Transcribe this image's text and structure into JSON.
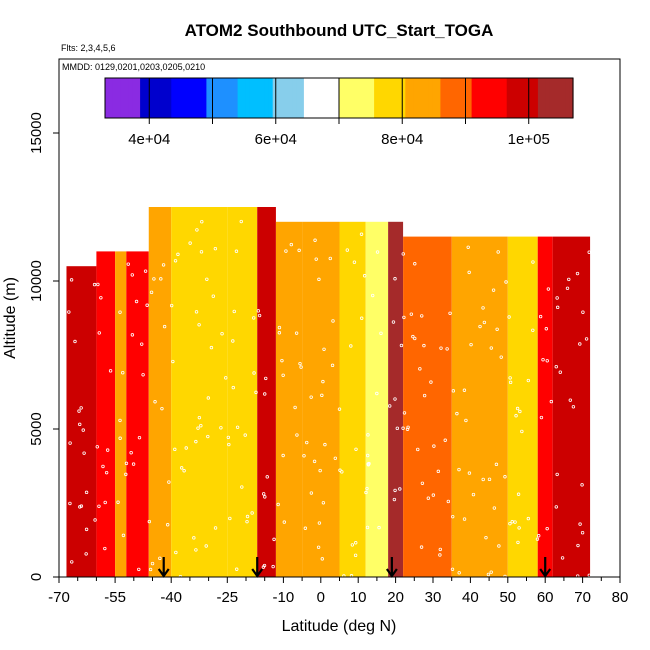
{
  "chart_data": {
    "type": "heatmap",
    "title": "ATOM2 Southbound UTC_Start_TOGA",
    "flights_note": "Flts: 2,3,4,5,6",
    "dates_note": "MMDD: 0129,0201,0203,0205,0210",
    "xlabel": "Latitude (deg N)",
    "ylabel": "Altitude (m)",
    "xlim": [
      -70,
      80
    ],
    "ylim": [
      0,
      17500
    ],
    "x_ticks": [
      -70,
      -55,
      -40,
      -25,
      -10,
      0,
      10,
      20,
      30,
      40,
      50,
      60,
      70,
      80
    ],
    "y_ticks": [
      0,
      5000,
      10000,
      15000
    ],
    "colorbar": {
      "range": [
        33000,
        107000
      ],
      "ticks": [
        40000,
        60000,
        80000,
        100000
      ],
      "tick_labels": [
        "4e+04",
        "6e+04",
        "8e+04",
        "1e+05"
      ],
      "divisions": [
        40000,
        50000,
        60000,
        70000,
        80000,
        90000,
        100000
      ],
      "colors": [
        "#8a2be2",
        "#0000cd",
        "#0000ff",
        "#1e90ff",
        "#00bfff",
        "#87ceeb",
        "#ffffff",
        "#ffff66",
        "#ffd700",
        "#ffa500",
        "#ff6600",
        "#ff0000",
        "#cc0000",
        "#a52a2a"
      ]
    },
    "columns": [
      {
        "x0": -68,
        "x1": -60,
        "top": 10500,
        "value": 99000
      },
      {
        "x0": -60,
        "x1": -55,
        "top": 11000,
        "value": 94000
      },
      {
        "x0": -55,
        "x1": -52,
        "top": 11000,
        "value": 84000
      },
      {
        "x0": -52,
        "x1": -46,
        "top": 11000,
        "value": 96000
      },
      {
        "x0": -46,
        "x1": -40,
        "top": 12500,
        "value": 82000
      },
      {
        "x0": -40,
        "x1": -25,
        "top": 12500,
        "value": 80000
      },
      {
        "x0": -25,
        "x1": -17,
        "top": 12500,
        "value": 77000
      },
      {
        "x0": -17,
        "x1": -12,
        "top": 12500,
        "value": 101000
      },
      {
        "x0": -12,
        "x1": -5,
        "top": 12000,
        "value": 84000
      },
      {
        "x0": -5,
        "x1": 5,
        "top": 12000,
        "value": 81000
      },
      {
        "x0": 5,
        "x1": 12,
        "top": 12000,
        "value": 76000
      },
      {
        "x0": 12,
        "x1": 18,
        "top": 12000,
        "value": 70000
      },
      {
        "x0": 18,
        "x1": 22,
        "top": 12000,
        "value": 102000
      },
      {
        "x0": 22,
        "x1": 35,
        "top": 11500,
        "value": 90000
      },
      {
        "x0": 35,
        "x1": 50,
        "top": 11500,
        "value": 84000
      },
      {
        "x0": 50,
        "x1": 58,
        "top": 11500,
        "value": 80000
      },
      {
        "x0": 58,
        "x1": 62,
        "top": 11500,
        "value": 94000
      },
      {
        "x0": 62,
        "x1": 72,
        "top": 11500,
        "value": 98000
      }
    ],
    "arrows_at_latitude": [
      -42,
      -17,
      19,
      60
    ]
  }
}
